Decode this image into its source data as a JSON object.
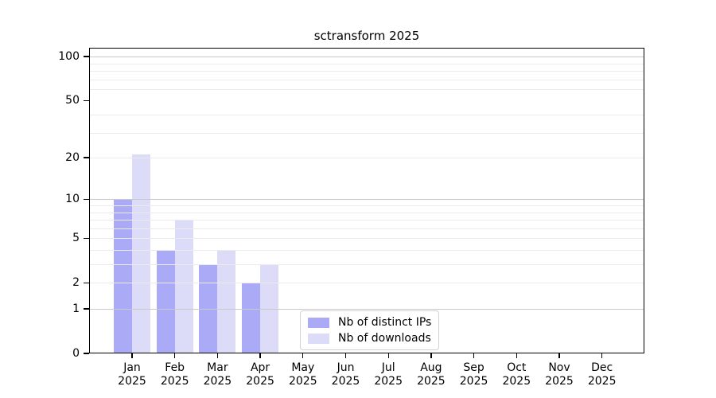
{
  "chart_data": {
    "type": "bar",
    "title": "sctransform 2025",
    "categories": [
      "Jan",
      "Feb",
      "Mar",
      "Apr",
      "May",
      "Jun",
      "Jul",
      "Aug",
      "Sep",
      "Oct",
      "Nov",
      "Dec"
    ],
    "category_year": "2025",
    "series": [
      {
        "name": "Nb of distinct IPs",
        "color": "#aaaaf7",
        "values": [
          10,
          4,
          3,
          2,
          0,
          0,
          0,
          0,
          0,
          0,
          0,
          0
        ]
      },
      {
        "name": "Nb of downloads",
        "color": "#dcdcf8",
        "values": [
          21,
          7,
          4,
          3,
          0,
          0,
          0,
          0,
          0,
          0,
          0,
          0
        ]
      }
    ],
    "yscale": "log1p",
    "ylim": [
      0,
      115
    ],
    "y_ticks": [
      0,
      1,
      2,
      5,
      10,
      20,
      50,
      100
    ],
    "y_major_grid": [
      1,
      10,
      100
    ],
    "y_minor_grid": [
      2,
      3,
      4,
      5,
      6,
      7,
      8,
      9,
      20,
      30,
      40,
      60,
      70,
      80,
      90
    ],
    "grid": "horizontal, drawn above bars",
    "legend_position": "bottom-center",
    "xlabel": "",
    "ylabel": ""
  },
  "colors": {
    "distinct_ips": "#aaaaf7",
    "downloads": "#dcdcf8",
    "grid_major": "#c9c9c9",
    "grid_minor": "#ebebeb",
    "axis": "#000000",
    "background": "#ffffff"
  }
}
